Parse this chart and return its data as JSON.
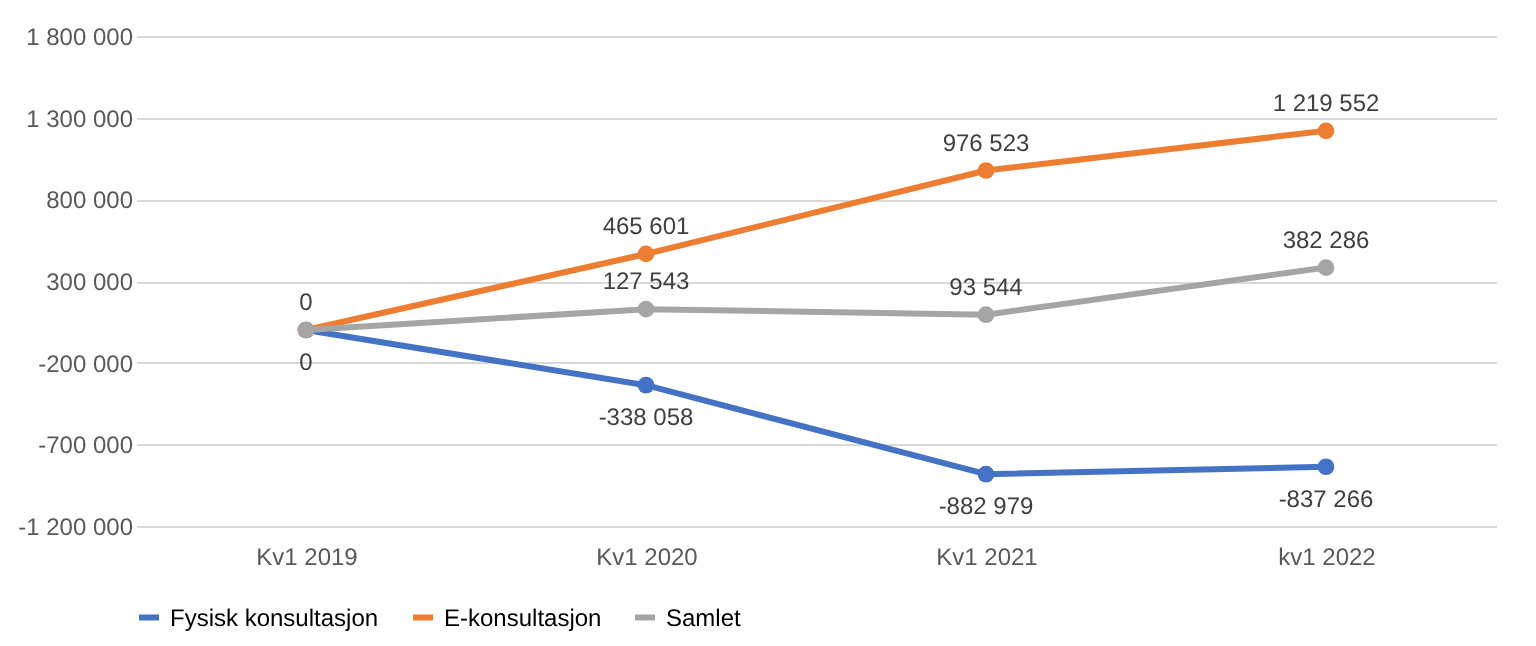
{
  "chart_data": {
    "type": "line",
    "categories": [
      "Kv1 2019",
      "Kv1 2020",
      "Kv1 2021",
      "kv1 2022"
    ],
    "series": [
      {
        "name": "Fysisk konsultasjon",
        "color": "#4472c4",
        "values": [
          0,
          -338058,
          -882979,
          -837266
        ],
        "value_labels": [
          "0",
          "-338 058",
          "-882 979",
          "-837 266"
        ]
      },
      {
        "name": "E-konsultasjon",
        "color": "#ed7d31",
        "values": [
          0,
          465601,
          976523,
          1219552
        ],
        "value_labels": [
          "0",
          "465 601",
          "976 523",
          "1 219 552"
        ]
      },
      {
        "name": "Samlet",
        "color": "#a5a5a5",
        "values": [
          0,
          127543,
          93544,
          382286
        ],
        "value_labels": [
          null,
          "127 543",
          "93 544",
          "382 286"
        ]
      }
    ],
    "ylim": [
      -1200000,
      1800000
    ],
    "yticks": [
      {
        "value": -1200000,
        "label": "-1 200 000"
      },
      {
        "value": -700000,
        "label": "-700 000"
      },
      {
        "value": -200000,
        "label": "-200 000"
      },
      {
        "value": 300000,
        "label": "300 000"
      },
      {
        "value": 800000,
        "label": "800 000"
      },
      {
        "value": 1300000,
        "label": "1 300 000"
      },
      {
        "value": 1800000,
        "label": "1 800 000"
      }
    ],
    "grid": "y",
    "legend": "bottom",
    "marker": "circle",
    "line_style": "solid"
  }
}
